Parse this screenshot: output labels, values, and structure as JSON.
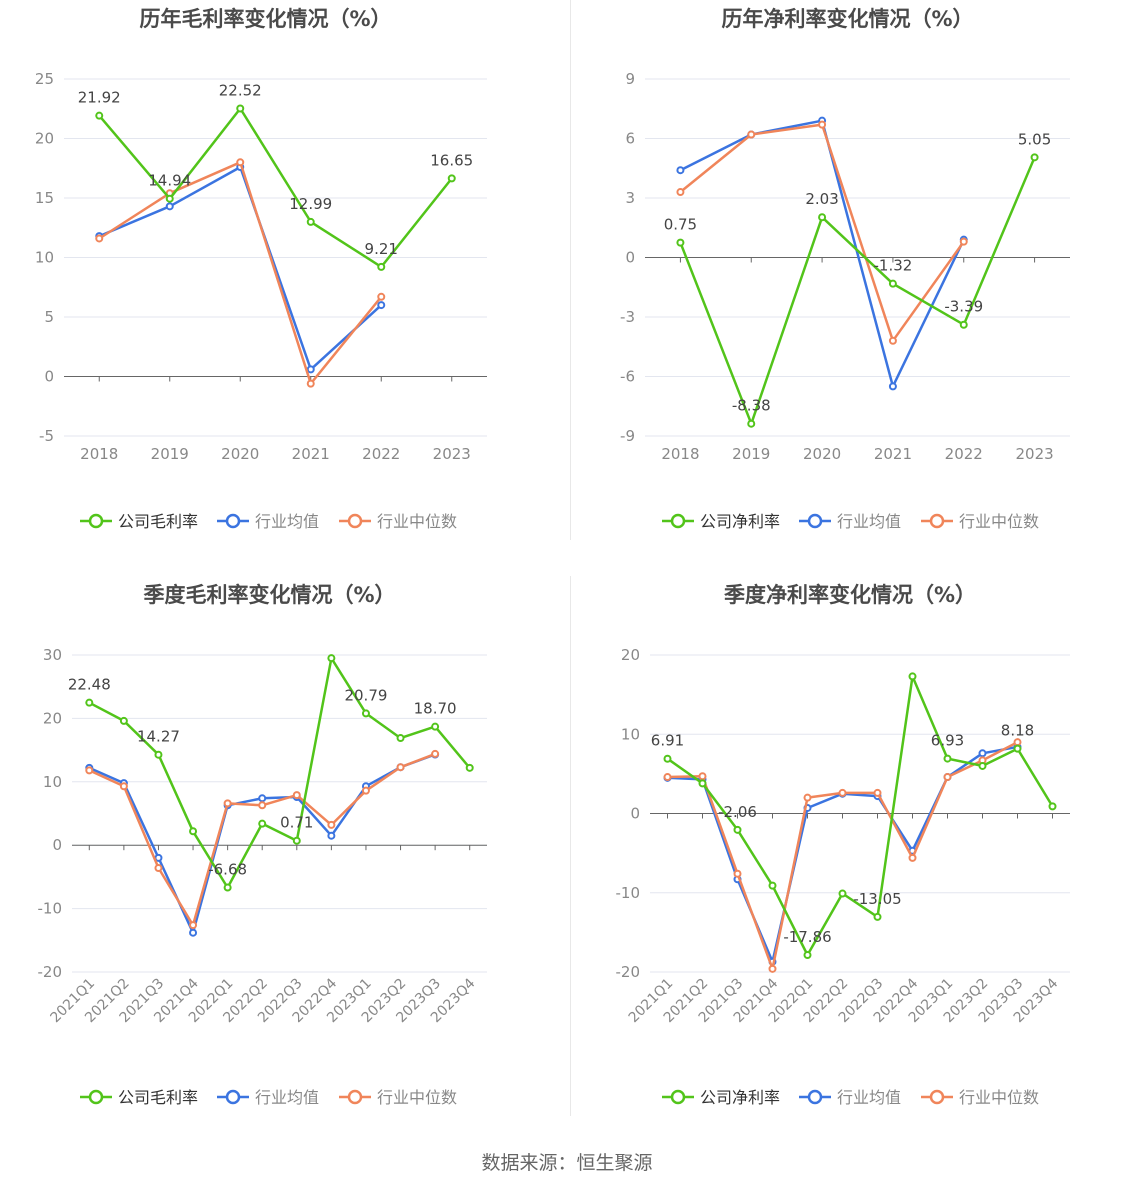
{
  "source_label": "数据来源：恒生聚源",
  "colors": {
    "company": "#52c41a",
    "avg": "#3b74e0",
    "median": "#f0855a",
    "grid": "#e3e6ef",
    "axis": "#666666",
    "text": "#555555",
    "title": "#4a4a4a"
  },
  "chart_data": [
    {
      "id": "annual-gross",
      "type": "line",
      "title": "历年毛利率变化情况（%）",
      "categories": [
        "2018",
        "2019",
        "2020",
        "2021",
        "2022",
        "2023"
      ],
      "ylim": [
        -5,
        25
      ],
      "yticks": [
        -5,
        0,
        5,
        10,
        15,
        20,
        25
      ],
      "grid": true,
      "legend_position": "bottom",
      "series": [
        {
          "name": "公司毛利率",
          "key": "company",
          "values": [
            21.92,
            14.94,
            22.52,
            12.99,
            9.21,
            16.65
          ]
        },
        {
          "name": "行业均值",
          "key": "avg",
          "values": [
            11.8,
            14.3,
            17.6,
            0.6,
            6.0,
            null
          ]
        },
        {
          "name": "行业中位数",
          "key": "median",
          "values": [
            11.6,
            15.4,
            18.0,
            -0.6,
            6.7,
            null
          ]
        }
      ],
      "data_labels": [
        {
          "i": 0,
          "text": "21.92"
        },
        {
          "i": 1,
          "text": "14.94"
        },
        {
          "i": 2,
          "text": "22.52"
        },
        {
          "i": 3,
          "text": "12.99"
        },
        {
          "i": 4,
          "text": "9.21"
        },
        {
          "i": 5,
          "text": "16.65"
        }
      ]
    },
    {
      "id": "annual-net",
      "type": "line",
      "title": "历年净利率变化情况（%）",
      "categories": [
        "2018",
        "2019",
        "2020",
        "2021",
        "2022",
        "2023"
      ],
      "ylim": [
        -9,
        9
      ],
      "yticks": [
        -9,
        -6,
        -3,
        0,
        3,
        6,
        9
      ],
      "grid": true,
      "legend_position": "bottom",
      "series": [
        {
          "name": "公司净利率",
          "key": "company",
          "values": [
            0.75,
            -8.38,
            2.03,
            -1.32,
            -3.39,
            5.05
          ]
        },
        {
          "name": "行业均值",
          "key": "avg",
          "values": [
            4.4,
            6.2,
            6.9,
            -6.5,
            0.9,
            null
          ]
        },
        {
          "name": "行业中位数",
          "key": "median",
          "values": [
            3.3,
            6.2,
            6.7,
            -4.2,
            0.8,
            null
          ]
        }
      ],
      "data_labels": [
        {
          "i": 0,
          "text": "0.75"
        },
        {
          "i": 1,
          "text": "-8.38"
        },
        {
          "i": 2,
          "text": "2.03"
        },
        {
          "i": 3,
          "text": "-1.32"
        },
        {
          "i": 4,
          "text": "-3.39"
        },
        {
          "i": 5,
          "text": "5.05"
        }
      ]
    },
    {
      "id": "quarterly-gross",
      "type": "line",
      "title": "季度毛利率变化情况（%）",
      "categories": [
        "2021Q1",
        "2021Q2",
        "2021Q3",
        "2021Q4",
        "2022Q1",
        "2022Q2",
        "2022Q3",
        "2022Q4",
        "2023Q1",
        "2023Q2",
        "2023Q3",
        "2023Q4"
      ],
      "ylim": [
        -20,
        30
      ],
      "yticks": [
        -20,
        -10,
        0,
        10,
        20,
        30
      ],
      "grid": true,
      "legend_position": "bottom",
      "series": [
        {
          "name": "公司毛利率",
          "key": "company",
          "values": [
            22.48,
            19.6,
            14.27,
            2.2,
            -6.68,
            3.4,
            0.71,
            29.5,
            20.79,
            16.9,
            18.7,
            12.2
          ]
        },
        {
          "name": "行业均值",
          "key": "avg",
          "values": [
            12.2,
            9.8,
            -2.0,
            -13.8,
            6.3,
            7.4,
            7.6,
            1.5,
            9.3,
            12.3,
            14.3,
            null
          ]
        },
        {
          "name": "行业中位数",
          "key": "median",
          "values": [
            11.8,
            9.3,
            -3.6,
            -12.6,
            6.6,
            6.3,
            7.9,
            3.2,
            8.6,
            12.3,
            14.4,
            null
          ]
        }
      ],
      "data_labels": [
        {
          "i": 0,
          "text": "22.48"
        },
        {
          "i": 2,
          "text": "14.27"
        },
        {
          "i": 4,
          "text": "-6.68"
        },
        {
          "i": 6,
          "text": "0.71"
        },
        {
          "i": 8,
          "text": "20.79"
        },
        {
          "i": 10,
          "text": "18.70"
        }
      ]
    },
    {
      "id": "quarterly-net",
      "type": "line",
      "title": "季度净利率变化情况（%）",
      "categories": [
        "2021Q1",
        "2021Q2",
        "2021Q3",
        "2021Q4",
        "2022Q1",
        "2022Q2",
        "2022Q3",
        "2022Q4",
        "2023Q1",
        "2023Q2",
        "2023Q3",
        "2023Q4"
      ],
      "ylim": [
        -20,
        20
      ],
      "yticks": [
        -20,
        -10,
        0,
        10,
        20
      ],
      "grid": true,
      "legend_position": "bottom",
      "series": [
        {
          "name": "公司净利率",
          "key": "company",
          "values": [
            6.91,
            3.8,
            -2.06,
            -9.1,
            -17.86,
            -10.1,
            -13.05,
            17.3,
            6.93,
            6.0,
            8.18,
            0.9
          ]
        },
        {
          "name": "行业均值",
          "key": "avg",
          "values": [
            4.5,
            4.3,
            -8.3,
            -18.7,
            0.7,
            2.5,
            2.2,
            -4.7,
            4.6,
            7.6,
            8.4,
            null
          ]
        },
        {
          "name": "行业中位数",
          "key": "median",
          "values": [
            4.6,
            4.7,
            -7.6,
            -19.6,
            2.0,
            2.6,
            2.6,
            -5.6,
            4.6,
            6.7,
            9.0,
            null
          ]
        }
      ],
      "data_labels": [
        {
          "i": 0,
          "text": "6.91"
        },
        {
          "i": 2,
          "text": "-2.06"
        },
        {
          "i": 4,
          "text": "-17.86"
        },
        {
          "i": 6,
          "text": "-13.05"
        },
        {
          "i": 8,
          "text": "6.93"
        },
        {
          "i": 10,
          "text": "8.18"
        }
      ]
    }
  ]
}
